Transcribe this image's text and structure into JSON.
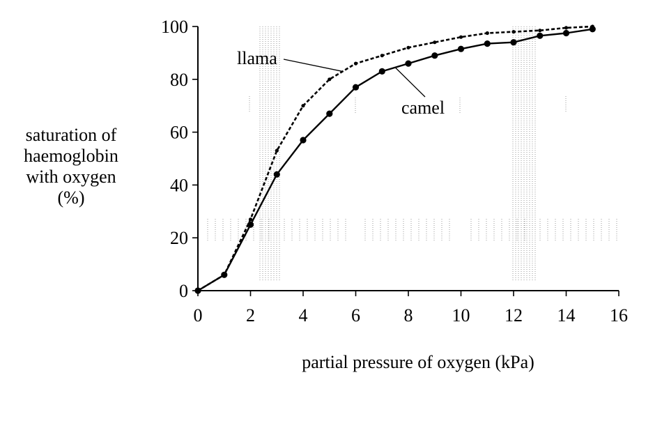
{
  "chart_data": {
    "type": "line",
    "title": "",
    "xlabel": "partial pressure of oxygen (kPa)",
    "ylabel_lines": [
      "saturation of",
      "haemoglobin",
      "with oxygen",
      "(%)"
    ],
    "xlim": [
      0,
      16
    ],
    "ylim": [
      0,
      100
    ],
    "xticks": [
      0,
      2,
      4,
      6,
      8,
      10,
      12,
      14,
      16
    ],
    "yticks": [
      0,
      20,
      40,
      60,
      80,
      100
    ],
    "grid": false,
    "legend": "inline labels",
    "series": [
      {
        "name": "llama",
        "style": "dashed",
        "marker": "small-dot",
        "x": [
          0,
          1,
          2,
          3,
          4,
          5,
          6,
          7,
          8,
          9,
          10,
          11,
          12,
          13,
          14,
          15
        ],
        "y": [
          0,
          6,
          27,
          53,
          70,
          80,
          86,
          89,
          92,
          94,
          96,
          97.5,
          98,
          98.5,
          99.5,
          100
        ]
      },
      {
        "name": "camel",
        "style": "solid",
        "marker": "dot",
        "x": [
          0,
          1,
          2,
          3,
          4,
          5,
          6,
          7,
          8,
          9,
          10,
          11,
          12,
          13,
          14,
          15
        ],
        "y": [
          0,
          6,
          25,
          44,
          57,
          67,
          77,
          83,
          86,
          89,
          91.5,
          93.5,
          94,
          96.5,
          97.5,
          99
        ]
      }
    ],
    "annotations": [
      {
        "label": "llama",
        "points_to": {
          "series": "llama",
          "x": 5.5
        }
      },
      {
        "label": "camel",
        "points_to": {
          "series": "camel",
          "x": 7.5
        }
      }
    ]
  }
}
